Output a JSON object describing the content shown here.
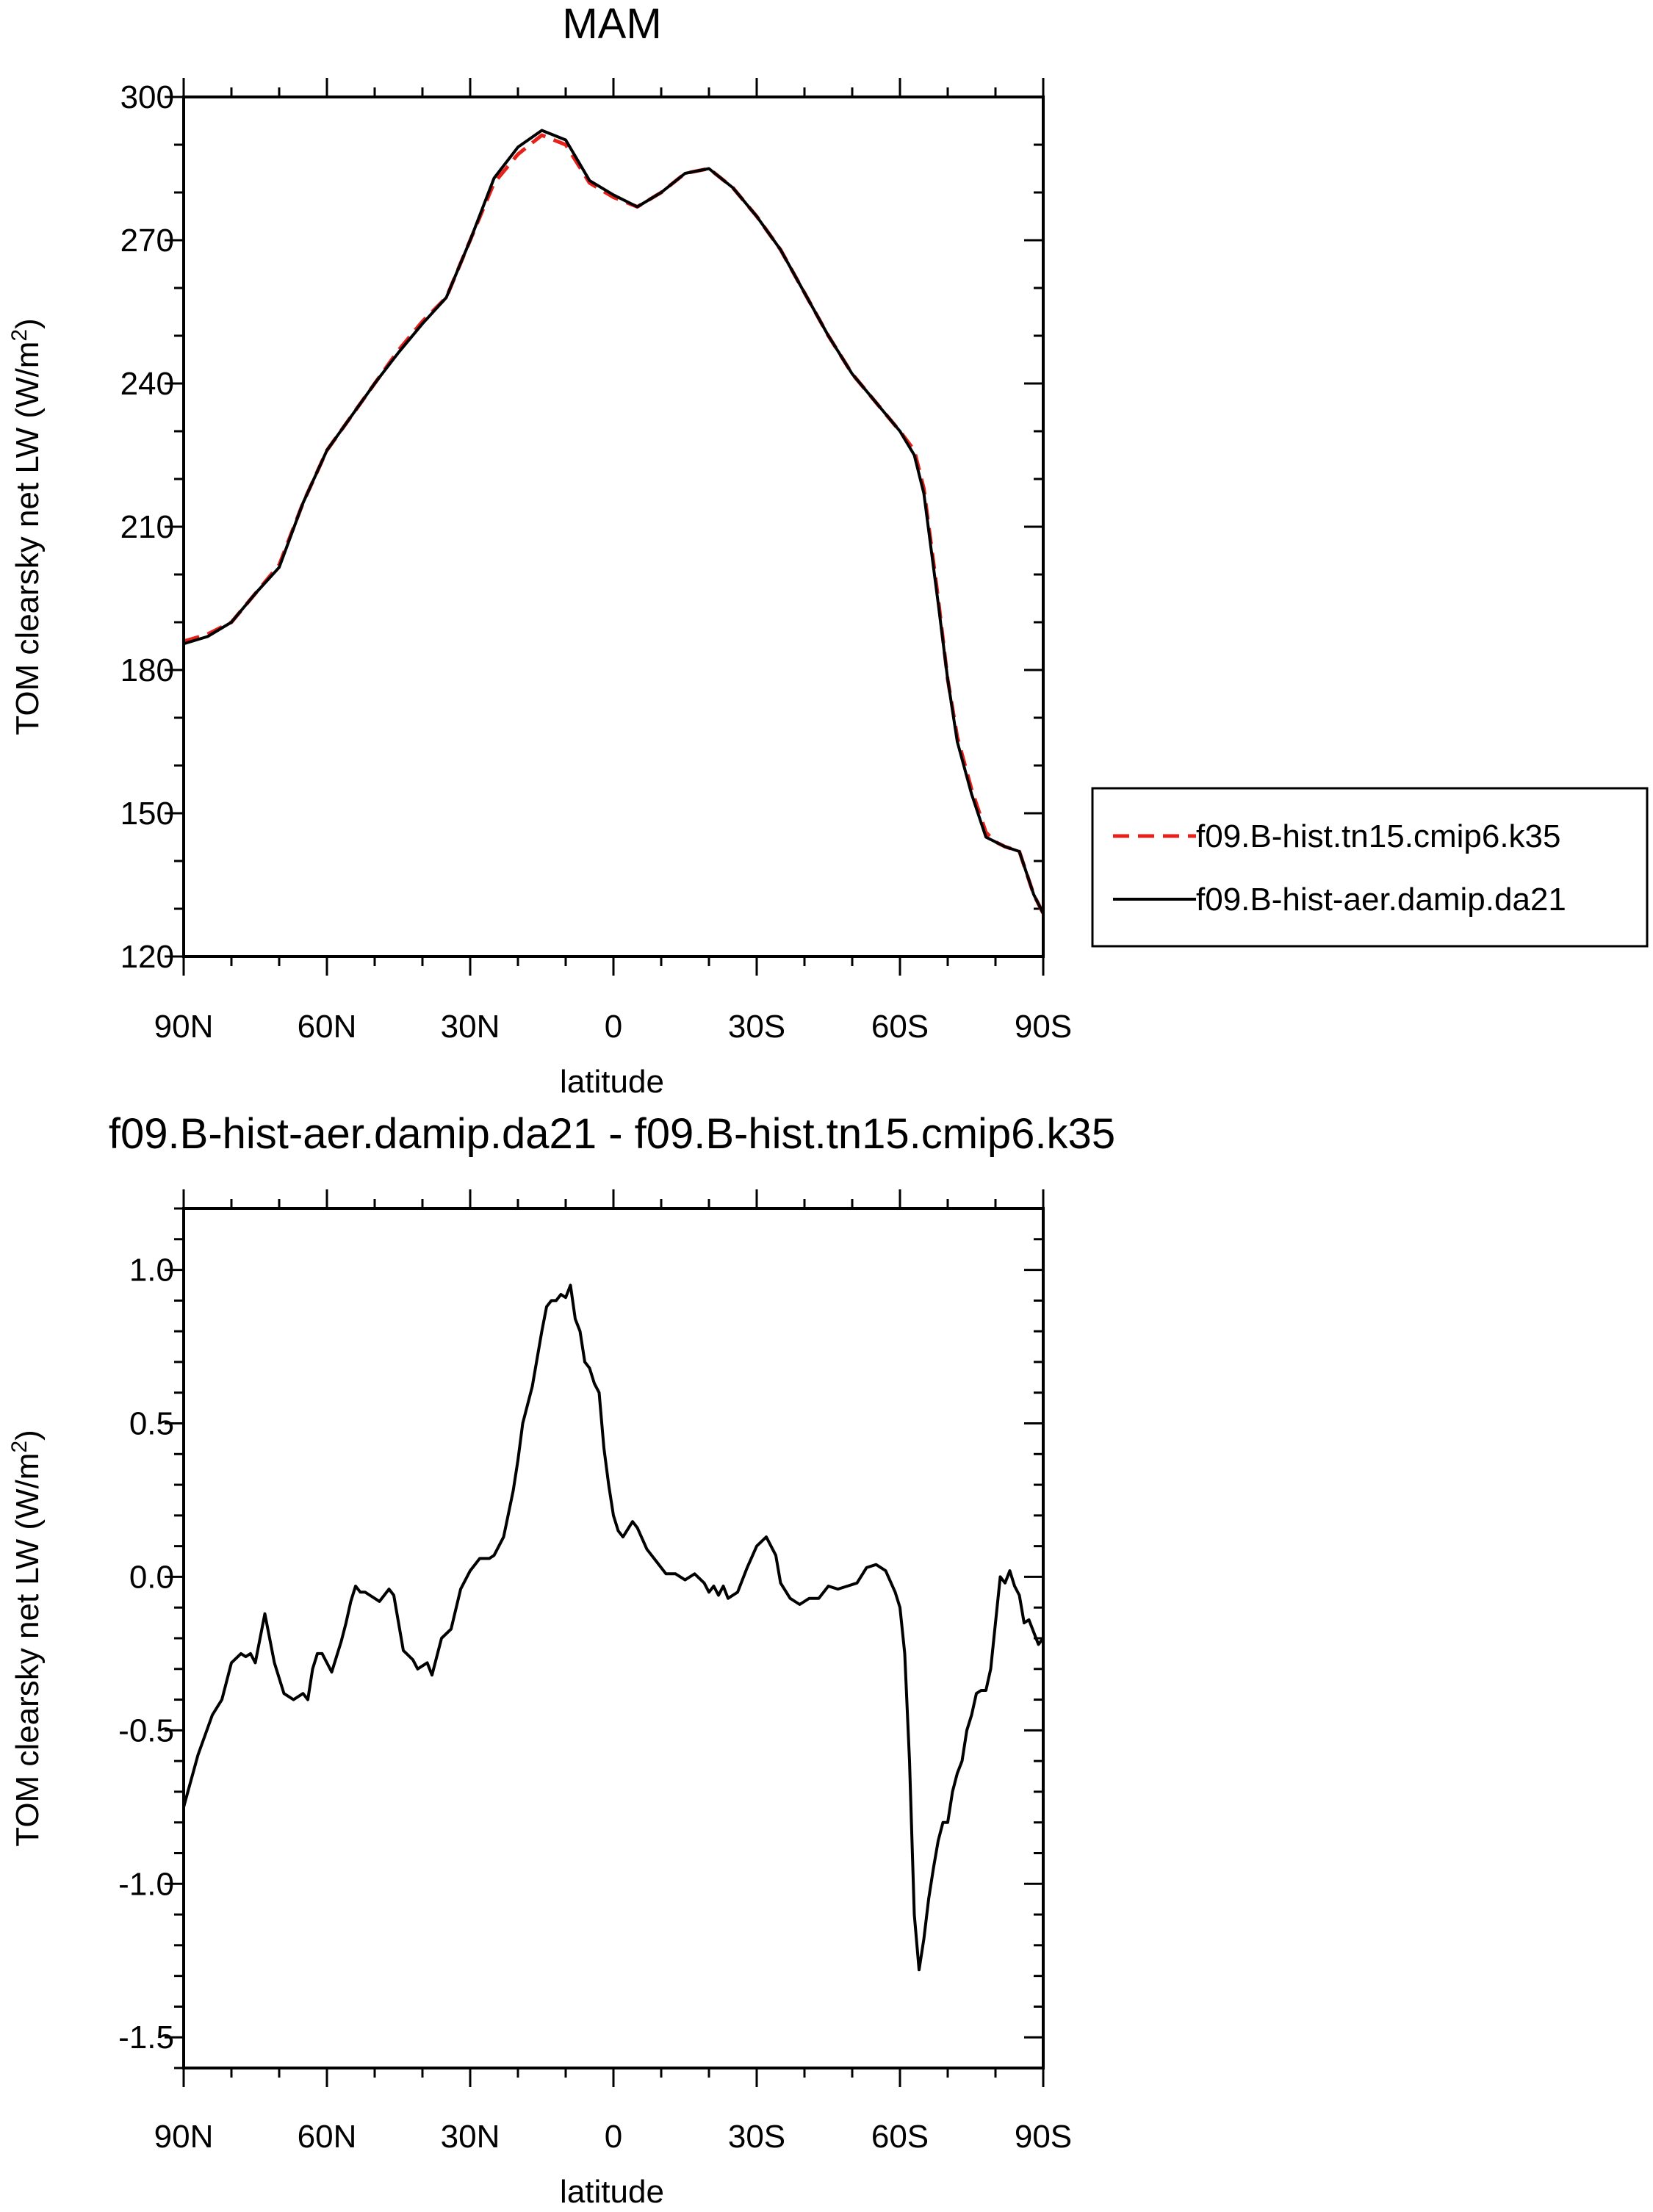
{
  "chart_data": [
    {
      "type": "line",
      "title": "MAM",
      "xlabel": "latitude",
      "ylabel": "TOM clearsky net LW (W/m²)",
      "ylabel_main": "TOM clearsky net LW (W/m",
      "ylabel_sup": "2",
      "ylabel_close": ")",
      "xlim": [
        90,
        -90
      ],
      "ylim": [
        120,
        300
      ],
      "x_ticks": [
        90,
        60,
        30,
        0,
        -30,
        -60,
        -90
      ],
      "x_tick_labels": [
        "90N",
        "60N",
        "30N",
        "0",
        "30S",
        "60S",
        "90S"
      ],
      "y_ticks": [
        120,
        150,
        180,
        210,
        240,
        270,
        300
      ],
      "y_tick_labels": [
        "120",
        "150",
        "180",
        "210",
        "240",
        "270",
        "300"
      ],
      "grid": false,
      "legend_position": "right",
      "series": [
        {
          "name": "f09.B-hist.tn15.cmip6.k35",
          "color": "#e8201a",
          "dash": "dashed",
          "x": [
            90,
            85,
            80,
            75,
            70,
            65,
            60,
            55,
            50,
            45,
            40,
            35,
            30,
            25,
            20,
            15,
            10,
            5,
            0,
            -5,
            -10,
            -15,
            -20,
            -25,
            -30,
            -35,
            -40,
            -45,
            -50,
            -55,
            -60,
            -63,
            -65,
            -68,
            -70,
            -72,
            -75,
            -78,
            -80,
            -82,
            -85,
            -88,
            -90
          ],
          "y": [
            186,
            187.5,
            190,
            196,
            202,
            215,
            226,
            233,
            240,
            247,
            253,
            258,
            270,
            282,
            288,
            292,
            290,
            282,
            279,
            277,
            280,
            284,
            285,
            281,
            275,
            268,
            259,
            250,
            242,
            236,
            230,
            226,
            218,
            195,
            178,
            166,
            155,
            146,
            144,
            143,
            142,
            133,
            129
          ]
        },
        {
          "name": "f09.B-hist-aer.damip.da21",
          "color": "#000000",
          "dash": "solid",
          "x": [
            90,
            85,
            80,
            75,
            70,
            65,
            60,
            55,
            50,
            45,
            40,
            35,
            30,
            25,
            20,
            15,
            10,
            5,
            0,
            -5,
            -10,
            -15,
            -20,
            -25,
            -30,
            -35,
            -40,
            -45,
            -50,
            -55,
            -60,
            -63,
            -65,
            -68,
            -70,
            -72,
            -75,
            -78,
            -80,
            -82,
            -85,
            -88,
            -90
          ],
          "y": [
            185.5,
            187,
            190,
            196,
            201.5,
            215,
            226,
            233,
            240,
            246.5,
            252.5,
            258,
            270,
            283,
            289.5,
            293,
            291,
            282.5,
            279.5,
            277,
            280,
            284,
            285,
            281,
            275,
            268,
            259,
            250,
            242,
            236,
            230,
            225,
            217,
            194,
            178,
            165,
            154,
            145,
            144,
            143,
            142,
            133,
            129
          ]
        }
      ]
    },
    {
      "type": "line",
      "title": "f09.B-hist-aer.damip.da21 - f09.B-hist.tn15.cmip6.k35",
      "xlabel": "latitude",
      "ylabel": "TOM clearsky net LW (W/m²)",
      "ylabel_main": "TOM clearsky net LW (W/m",
      "ylabel_sup": "2",
      "ylabel_close": ")",
      "xlim": [
        90,
        -90
      ],
      "ylim": [
        -1.6,
        1.2
      ],
      "x_ticks": [
        90,
        60,
        30,
        0,
        -30,
        -60,
        -90
      ],
      "x_tick_labels": [
        "90N",
        "60N",
        "30N",
        "0",
        "30S",
        "60S",
        "90S"
      ],
      "y_ticks": [
        -1.5,
        -1.0,
        -0.5,
        0.0,
        0.5,
        1.0
      ],
      "y_tick_labels": [
        "-1.5",
        "-1.0",
        "-0.5",
        "0.0",
        "0.5",
        "1.0"
      ],
      "grid": false,
      "series": [
        {
          "color": "#000000",
          "dash": "solid",
          "x": [
            90,
            87,
            84,
            82,
            80,
            78,
            77,
            76,
            75,
            73,
            71,
            69,
            67,
            65,
            64,
            63,
            62,
            61,
            59,
            57,
            56,
            55,
            54,
            53,
            52,
            51,
            50,
            49,
            47,
            46,
            45,
            44,
            42,
            41,
            39,
            38,
            36,
            34,
            32,
            30,
            28,
            26,
            25,
            23,
            21,
            20,
            19,
            17,
            15,
            14,
            13,
            12,
            11,
            10,
            9,
            8,
            7,
            6,
            5,
            4,
            3,
            2,
            1,
            0,
            -1,
            -2,
            -4,
            -5,
            -7,
            -9,
            -11,
            -13,
            -15,
            -17,
            -19,
            -20,
            -21,
            -22,
            -23,
            -24,
            -26,
            -28,
            -30,
            -32,
            -34,
            -35,
            -37,
            -39,
            -41,
            -43,
            -45,
            -47,
            -49,
            -51,
            -53,
            -55,
            -57,
            -59,
            -60,
            -61,
            -62,
            -63,
            -64,
            -65,
            -66,
            -67,
            -68,
            -69,
            -70,
            -71,
            -72,
            -73,
            -74,
            -75,
            -76,
            -77,
            -78,
            -79,
            -80,
            -81,
            -82,
            -83,
            -84,
            -85,
            -86,
            -87,
            -88,
            -89,
            -90
          ],
          "y": [
            -0.75,
            -0.58,
            -0.45,
            -0.4,
            -0.28,
            -0.25,
            -0.26,
            -0.25,
            -0.28,
            -0.12,
            -0.28,
            -0.38,
            -0.4,
            -0.38,
            -0.4,
            -0.3,
            -0.25,
            -0.25,
            -0.31,
            -0.21,
            -0.15,
            -0.08,
            -0.03,
            -0.05,
            -0.05,
            -0.06,
            -0.07,
            -0.08,
            -0.04,
            -0.06,
            -0.15,
            -0.24,
            -0.27,
            -0.3,
            -0.28,
            -0.32,
            -0.2,
            -0.17,
            -0.04,
            0.02,
            0.06,
            0.06,
            0.07,
            0.13,
            0.28,
            0.38,
            0.5,
            0.62,
            0.8,
            0.88,
            0.9,
            0.9,
            0.92,
            0.91,
            0.95,
            0.84,
            0.8,
            0.7,
            0.68,
            0.63,
            0.6,
            0.42,
            0.3,
            0.2,
            0.15,
            0.13,
            0.18,
            0.16,
            0.09,
            0.05,
            0.01,
            0.01,
            -0.01,
            0.01,
            -0.02,
            -0.05,
            -0.03,
            -0.06,
            -0.03,
            -0.07,
            -0.05,
            0.03,
            0.1,
            0.13,
            0.07,
            -0.02,
            -0.07,
            -0.09,
            -0.07,
            -0.07,
            -0.03,
            -0.04,
            -0.03,
            -0.02,
            0.03,
            0.04,
            0.02,
            -0.05,
            -0.1,
            -0.25,
            -0.6,
            -1.1,
            -1.28,
            -1.18,
            -1.05,
            -0.95,
            -0.86,
            -0.8,
            -0.8,
            -0.7,
            -0.64,
            -0.6,
            -0.5,
            -0.45,
            -0.38,
            -0.37,
            -0.37,
            -0.3,
            -0.15,
            0.0,
            -0.02,
            0.02,
            -0.03,
            -0.06,
            -0.15,
            -0.14,
            -0.18,
            -0.22,
            -0.2
          ]
        }
      ]
    }
  ]
}
